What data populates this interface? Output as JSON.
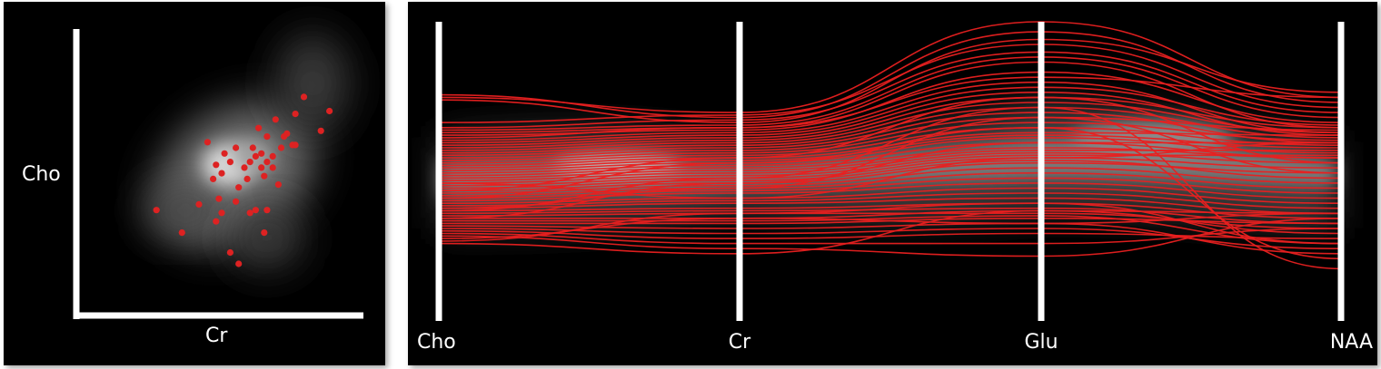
{
  "chart_data": [
    {
      "type": "scatter",
      "xlabel": "Cr",
      "ylabel": "Cho",
      "xlim": [
        0,
        1
      ],
      "ylim": [
        0,
        1
      ],
      "point_color": "#dd2222",
      "points": [
        [
          0.79,
          0.76
        ],
        [
          0.69,
          0.68
        ],
        [
          0.76,
          0.7
        ],
        [
          0.85,
          0.64
        ],
        [
          0.88,
          0.71
        ],
        [
          0.75,
          0.59
        ],
        [
          0.71,
          0.58
        ],
        [
          0.61,
          0.58
        ],
        [
          0.63,
          0.65
        ],
        [
          0.66,
          0.62
        ],
        [
          0.72,
          0.62
        ],
        [
          0.73,
          0.63
        ],
        [
          0.68,
          0.55
        ],
        [
          0.64,
          0.56
        ],
        [
          0.62,
          0.55
        ],
        [
          0.68,
          0.51
        ],
        [
          0.66,
          0.53
        ],
        [
          0.64,
          0.51
        ],
        [
          0.65,
          0.48
        ],
        [
          0.6,
          0.53
        ],
        [
          0.58,
          0.51
        ],
        [
          0.55,
          0.58
        ],
        [
          0.53,
          0.53
        ],
        [
          0.51,
          0.56
        ],
        [
          0.5,
          0.49
        ],
        [
          0.49,
          0.4
        ],
        [
          0.47,
          0.47
        ],
        [
          0.48,
          0.52
        ],
        [
          0.59,
          0.47
        ],
        [
          0.55,
          0.39
        ],
        [
          0.5,
          0.35
        ],
        [
          0.48,
          0.32
        ],
        [
          0.42,
          0.38
        ],
        [
          0.36,
          0.28
        ],
        [
          0.27,
          0.36
        ],
        [
          0.56,
          0.44
        ],
        [
          0.62,
          0.36
        ],
        [
          0.6,
          0.35
        ],
        [
          0.66,
          0.36
        ],
        [
          0.65,
          0.28
        ],
        [
          0.53,
          0.21
        ],
        [
          0.56,
          0.17
        ],
        [
          0.76,
          0.59
        ],
        [
          0.7,
          0.45
        ],
        [
          0.45,
          0.6
        ]
      ]
    },
    {
      "type": "parallel-coordinates",
      "axes": [
        "Cho",
        "Cr",
        "Glu",
        "NAA"
      ],
      "line_color": "#e82020",
      "ylim": [
        0,
        1
      ],
      "lines": [
        [
          0.7,
          0.64,
          1.0,
          0.7
        ],
        [
          0.71,
          0.62,
          0.96,
          0.68
        ],
        [
          0.69,
          0.6,
          0.93,
          0.72
        ],
        [
          0.6,
          0.63,
          0.91,
          0.66
        ],
        [
          0.58,
          0.61,
          0.88,
          0.64
        ],
        [
          0.57,
          0.59,
          0.86,
          0.62
        ],
        [
          0.56,
          0.58,
          0.84,
          0.58
        ],
        [
          0.55,
          0.57,
          0.8,
          0.6
        ],
        [
          0.54,
          0.58,
          0.78,
          0.7
        ],
        [
          0.53,
          0.56,
          0.76,
          0.56
        ],
        [
          0.52,
          0.55,
          0.74,
          0.59
        ],
        [
          0.51,
          0.54,
          0.72,
          0.55
        ],
        [
          0.5,
          0.53,
          0.7,
          0.58
        ],
        [
          0.49,
          0.52,
          0.68,
          0.56
        ],
        [
          0.48,
          0.51,
          0.66,
          0.54
        ],
        [
          0.47,
          0.5,
          0.64,
          0.52
        ],
        [
          0.46,
          0.49,
          0.62,
          0.57
        ],
        [
          0.45,
          0.48,
          0.6,
          0.53
        ],
        [
          0.44,
          0.47,
          0.58,
          0.51
        ],
        [
          0.43,
          0.46,
          0.56,
          0.55
        ],
        [
          0.42,
          0.45,
          0.55,
          0.5
        ],
        [
          0.41,
          0.44,
          0.54,
          0.48
        ],
        [
          0.4,
          0.43,
          0.52,
          0.52
        ],
        [
          0.39,
          0.42,
          0.5,
          0.46
        ],
        [
          0.38,
          0.41,
          0.49,
          0.49
        ],
        [
          0.37,
          0.4,
          0.48,
          0.44
        ],
        [
          0.36,
          0.39,
          0.47,
          0.47
        ],
        [
          0.35,
          0.38,
          0.46,
          0.42
        ],
        [
          0.34,
          0.37,
          0.45,
          0.38
        ],
        [
          0.33,
          0.36,
          0.44,
          0.4
        ],
        [
          0.32,
          0.35,
          0.42,
          0.36
        ],
        [
          0.31,
          0.34,
          0.4,
          0.34
        ],
        [
          0.3,
          0.33,
          0.38,
          0.32
        ],
        [
          0.29,
          0.32,
          0.36,
          0.3
        ],
        [
          0.28,
          0.3,
          0.34,
          0.28
        ],
        [
          0.27,
          0.29,
          0.32,
          0.26
        ],
        [
          0.26,
          0.28,
          0.3,
          0.24
        ],
        [
          0.25,
          0.26,
          0.28,
          0.22
        ],
        [
          0.24,
          0.25,
          0.26,
          0.2
        ],
        [
          0.23,
          0.24,
          0.24,
          0.18
        ],
        [
          0.22,
          0.22,
          0.25,
          0.16
        ],
        [
          0.21,
          0.21,
          0.23,
          0.12
        ],
        [
          0.2,
          0.2,
          0.22,
          0.2
        ],
        [
          0.19,
          0.18,
          0.2,
          0.24
        ],
        [
          0.18,
          0.16,
          0.18,
          0.1
        ],
        [
          0.17,
          0.14,
          0.16,
          0.14
        ],
        [
          0.16,
          0.12,
          0.12,
          0.18
        ],
        [
          0.15,
          0.1,
          0.07,
          0.22
        ],
        [
          0.14,
          0.22,
          0.2,
          0.08
        ],
        [
          0.13,
          0.24,
          0.28,
          0.12
        ],
        [
          0.12,
          0.08,
          0.25,
          0.24
        ],
        [
          0.3,
          0.44,
          0.58,
          0.06
        ],
        [
          0.25,
          0.38,
          0.66,
          0.02
        ],
        [
          0.33,
          0.46,
          0.7,
          0.44
        ],
        [
          0.26,
          0.34,
          0.62,
          0.4
        ],
        [
          0.36,
          0.3,
          0.46,
          0.52
        ],
        [
          0.22,
          0.36,
          0.52,
          0.46
        ]
      ]
    }
  ]
}
